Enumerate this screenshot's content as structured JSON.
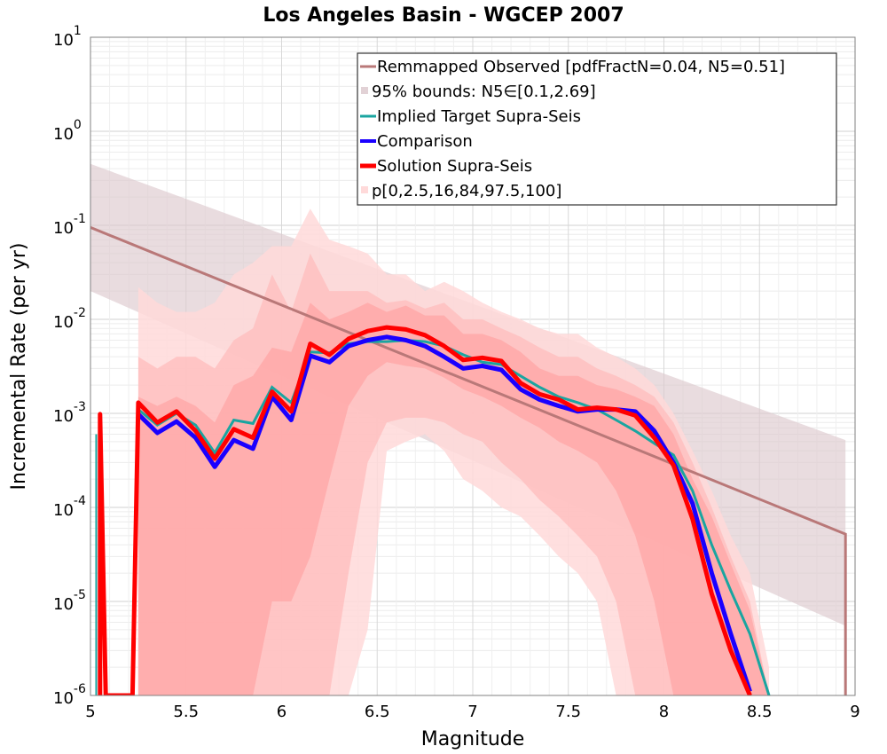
{
  "chart_data": {
    "type": "line",
    "title": "Los Angeles Basin - WGCEP 2007",
    "xlabel": "Magnitude",
    "ylabel": "Incremental Rate (per yr)",
    "xlim": [
      5,
      9
    ],
    "ylim_log10": [
      -6,
      1
    ],
    "x_ticks": [
      5,
      5.5,
      6,
      6.5,
      7,
      7.5,
      8,
      8.5,
      9
    ],
    "x_tick_labels": [
      "5",
      "5.5",
      "6",
      "6.5",
      "7",
      "7.5",
      "8",
      "8.5",
      "9"
    ],
    "y_ticks": [
      {
        "base": "10",
        "exp": "1"
      },
      {
        "base": "10",
        "exp": "0"
      },
      {
        "base": "10",
        "exp": "-1"
      },
      {
        "base": "10",
        "exp": "-2"
      },
      {
        "base": "10",
        "exp": "-3"
      },
      {
        "base": "10",
        "exp": "-4"
      },
      {
        "base": "10",
        "exp": "-5"
      },
      {
        "base": "10",
        "exp": "-6"
      }
    ],
    "grid": true,
    "legend_position": "top-right",
    "legend": [
      {
        "label": "Remmapped Observed [pdfFractN=0.04, N5=0.51]",
        "style": "line",
        "color": "#b97878"
      },
      {
        "label": "95% bounds: N5∈[0.1,2.69]",
        "style": "box",
        "color": "#e2d2d6"
      },
      {
        "label": "Implied Target Supra-Seis",
        "style": "line",
        "color": "#1aa5a0"
      },
      {
        "label": "Comparison",
        "style": "line",
        "color": "#1a00ff"
      },
      {
        "label": "Solution Supra-Seis",
        "style": "line",
        "color": "#ff0000"
      },
      {
        "label": "p[0,2.5,16,84,97.5,100]",
        "style": "box",
        "color": "#ffdada"
      }
    ],
    "series": [
      {
        "name": "Remmapped Observed [pdfFractN=0.04, N5=0.51]",
        "color": "#b97878",
        "x": [
          5.0,
          8.95,
          8.95
        ],
        "y": [
          0.095,
          5.2e-05,
          1e-06
        ]
      },
      {
        "name": "95% bounds lower",
        "color": "#e2d2d6",
        "x": [
          5.0,
          8.95
        ],
        "y": [
          0.02,
          5.5e-06
        ]
      },
      {
        "name": "95% bounds upper",
        "color": "#e2d2d6",
        "x": [
          5.0,
          8.95
        ],
        "y": [
          0.45,
          0.00052
        ]
      },
      {
        "name": "Implied Target Supra-Seis",
        "color": "#1aa5a0",
        "x": [
          5.25,
          5.35,
          5.45,
          5.55,
          5.65,
          5.75,
          5.85,
          5.95,
          6.05,
          6.15,
          6.25,
          6.35,
          6.45,
          6.55,
          6.65,
          6.75,
          6.85,
          6.95,
          7.05,
          7.15,
          7.25,
          7.35,
          7.45,
          7.55,
          7.65,
          7.75,
          7.85,
          7.95,
          8.05,
          8.15,
          8.25,
          8.35,
          8.45,
          8.55
        ],
        "y": [
          0.0011,
          0.00075,
          0.001,
          0.00075,
          0.00038,
          0.00085,
          0.00078,
          0.0019,
          0.0013,
          0.0045,
          0.0044,
          0.0055,
          0.0058,
          0.0058,
          0.006,
          0.0058,
          0.0052,
          0.0042,
          0.0035,
          0.0033,
          0.0025,
          0.0019,
          0.0015,
          0.0013,
          0.0011,
          0.00085,
          0.00065,
          0.00048,
          0.00036,
          0.00015,
          4e-05,
          1.3e-05,
          4.5e-06,
          1e-06
        ]
      },
      {
        "name": "Comparison",
        "color": "#1a00ff",
        "x": [
          5.25,
          5.35,
          5.45,
          5.55,
          5.65,
          5.75,
          5.85,
          5.95,
          6.05,
          6.15,
          6.25,
          6.35,
          6.45,
          6.55,
          6.65,
          6.75,
          6.85,
          6.95,
          7.05,
          7.15,
          7.25,
          7.35,
          7.45,
          7.55,
          7.65,
          7.75,
          7.85,
          7.95,
          8.05,
          8.15,
          8.25,
          8.35,
          8.45
        ],
        "y": [
          0.00098,
          0.00062,
          0.00082,
          0.00055,
          0.00027,
          0.00052,
          0.00042,
          0.0015,
          0.00085,
          0.0041,
          0.0035,
          0.0052,
          0.006,
          0.0065,
          0.006,
          0.0052,
          0.004,
          0.003,
          0.0032,
          0.0029,
          0.0018,
          0.0014,
          0.0012,
          0.00105,
          0.0011,
          0.0011,
          0.00105,
          0.00065,
          0.0003,
          0.00011,
          2e-05,
          4.5e-06,
          1.1e-06
        ]
      },
      {
        "name": "Solution Supra-Seis",
        "color": "#ff0000",
        "x": [
          5.05,
          5.05,
          5.08,
          5.22,
          5.25,
          5.35,
          5.45,
          5.55,
          5.65,
          5.75,
          5.85,
          5.95,
          6.05,
          6.15,
          6.25,
          6.35,
          6.45,
          6.55,
          6.65,
          6.75,
          6.85,
          6.95,
          7.05,
          7.15,
          7.25,
          7.35,
          7.45,
          7.55,
          7.65,
          7.75,
          7.85,
          7.95,
          8.05,
          8.15,
          8.25,
          8.35,
          8.45
        ],
        "y": [
          1e-06,
          0.00098,
          1e-06,
          1e-06,
          0.0013,
          0.0008,
          0.00105,
          0.00065,
          0.00033,
          0.00068,
          0.00055,
          0.0017,
          0.00105,
          0.0055,
          0.0042,
          0.0062,
          0.0075,
          0.0082,
          0.0078,
          0.0068,
          0.0052,
          0.0037,
          0.0039,
          0.0036,
          0.0021,
          0.0016,
          0.0014,
          0.0011,
          0.00115,
          0.0011,
          0.00095,
          0.00055,
          0.00028,
          7.5e-05,
          1.2e-05,
          3e-06,
          1e-06
        ]
      }
    ],
    "percentile_bands": {
      "x": [
        5.25,
        5.35,
        5.45,
        5.55,
        5.65,
        5.75,
        5.85,
        5.95,
        6.05,
        6.15,
        6.25,
        6.35,
        6.45,
        6.55,
        6.65,
        6.75,
        6.85,
        6.95,
        7.05,
        7.15,
        7.25,
        7.35,
        7.45,
        7.55,
        7.65,
        7.75,
        7.85,
        7.95,
        8.05,
        8.15,
        8.25,
        8.35,
        8.45,
        8.55
      ],
      "p0": [
        1e-06,
        1e-06,
        1e-06,
        1e-06,
        1e-06,
        1e-06,
        1e-06,
        1e-06,
        1e-06,
        1e-06,
        1e-06,
        1e-06,
        5e-06,
        0.0004,
        0.0005,
        0.0006,
        0.0004,
        0.0002,
        0.00015,
        0.0001,
        8e-05,
        5e-05,
        3e-05,
        2e-05,
        1e-05,
        1e-06,
        1e-06,
        1e-06,
        1e-06,
        1e-06,
        1e-06,
        1e-06,
        1e-06,
        1e-06
      ],
      "p2_5": [
        1e-06,
        1e-06,
        1e-06,
        1e-06,
        1e-06,
        1e-06,
        1e-06,
        1e-06,
        1e-06,
        1e-06,
        1e-06,
        2e-05,
        0.0003,
        0.0008,
        0.0009,
        0.0009,
        0.0008,
        0.0006,
        0.0005,
        0.0003,
        0.0002,
        0.00012,
        8e-05,
        5e-05,
        3e-05,
        1e-05,
        1e-06,
        1e-06,
        1e-06,
        1e-06,
        1e-06,
        1e-06,
        1e-06,
        1e-06
      ],
      "p16": [
        1e-06,
        1e-06,
        1e-06,
        1e-06,
        1e-06,
        1e-06,
        1e-06,
        1e-05,
        1e-05,
        3e-05,
        0.0002,
        0.0012,
        0.0025,
        0.0035,
        0.0032,
        0.003,
        0.0024,
        0.0018,
        0.0015,
        0.0012,
        0.0009,
        0.0007,
        0.0005,
        0.0004,
        0.0003,
        0.00015,
        5e-05,
        1e-05,
        1e-06,
        1e-06,
        1e-06,
        1e-06,
        1e-06,
        1e-06
      ],
      "p84": [
        0.0015,
        0.0012,
        0.0015,
        0.0012,
        0.0008,
        0.002,
        0.0025,
        0.005,
        0.0045,
        0.015,
        0.01,
        0.012,
        0.015,
        0.012,
        0.014,
        0.011,
        0.011,
        0.007,
        0.007,
        0.006,
        0.0045,
        0.003,
        0.0025,
        0.0025,
        0.002,
        0.0018,
        0.0015,
        0.0012,
        0.0006,
        0.0002,
        8e-05,
        2.5e-05,
        8e-06,
        1e-06
      ],
      "p97_5": [
        0.004,
        0.003,
        0.004,
        0.004,
        0.003,
        0.006,
        0.008,
        0.03,
        0.012,
        0.05,
        0.02,
        0.02,
        0.02,
        0.015,
        0.016,
        0.013,
        0.015,
        0.01,
        0.01,
        0.008,
        0.0065,
        0.005,
        0.004,
        0.004,
        0.003,
        0.0025,
        0.002,
        0.0015,
        0.0008,
        0.0003,
        0.0001,
        3e-05,
        1e-05,
        1e-06
      ],
      "p100": [
        0.022,
        0.015,
        0.012,
        0.012,
        0.015,
        0.03,
        0.04,
        0.06,
        0.06,
        0.15,
        0.07,
        0.06,
        0.05,
        0.03,
        0.03,
        0.02,
        0.025,
        0.02,
        0.015,
        0.012,
        0.01,
        0.008,
        0.007,
        0.007,
        0.005,
        0.004,
        0.003,
        0.002,
        0.001,
        0.0004,
        0.00015,
        5e-05,
        2e-05,
        2e-06
      ]
    }
  }
}
